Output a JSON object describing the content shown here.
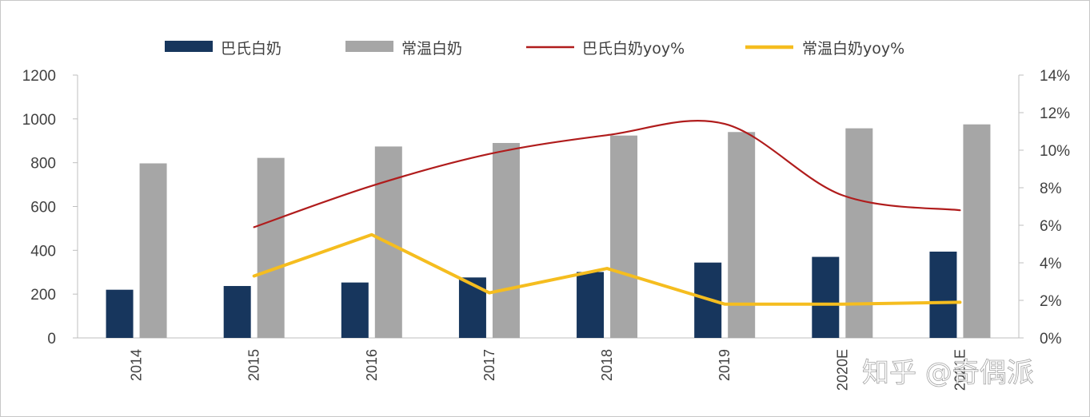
{
  "watermark": "知乎 @奇偶派",
  "colors": {
    "bar_pasteurized": "#17365d",
    "bar_uht": "#a6a6a6",
    "line_pasteurized_yoy": "#b01c1c",
    "line_uht_yoy": "#f5bd1f"
  },
  "chart_data": {
    "type": "bar",
    "categories": [
      "2014",
      "2015",
      "2016",
      "2017",
      "2018",
      "2019",
      "2020E",
      "2021E"
    ],
    "y_left": {
      "min": 0,
      "max": 1200,
      "ticks": [
        0,
        200,
        400,
        600,
        800,
        1000,
        1200
      ],
      "labels": [
        "0",
        "200",
        "400",
        "600",
        "800",
        "1000",
        "1200"
      ]
    },
    "y_right": {
      "min": 0,
      "max": 14,
      "ticks": [
        0,
        2,
        4,
        6,
        8,
        10,
        12,
        14
      ],
      "labels": [
        "0%",
        "2%",
        "4%",
        "6%",
        "8%",
        "10%",
        "12%",
        "14%"
      ]
    },
    "legend_position": "top",
    "series": [
      {
        "name": "巴氏白奶",
        "kind": "bar",
        "axis": "left",
        "color": "#17365d",
        "values": [
          220,
          237,
          253,
          276,
          301,
          344,
          370,
          394
        ]
      },
      {
        "name": "常温白奶",
        "kind": "bar",
        "axis": "left",
        "color": "#a6a6a6",
        "values": [
          797,
          822,
          874,
          890,
          924,
          940,
          957,
          975
        ]
      },
      {
        "name": "巴氏白奶yoy%",
        "kind": "line",
        "axis": "right",
        "color": "#b01c1c",
        "values": [
          null,
          5.9,
          8.1,
          9.8,
          10.8,
          11.4,
          7.6,
          6.8
        ]
      },
      {
        "name": "常温白奶yoy%",
        "kind": "line",
        "axis": "right",
        "color": "#f5bd1f",
        "values": [
          null,
          3.3,
          5.5,
          2.4,
          3.7,
          1.8,
          1.8,
          1.9
        ]
      }
    ]
  }
}
